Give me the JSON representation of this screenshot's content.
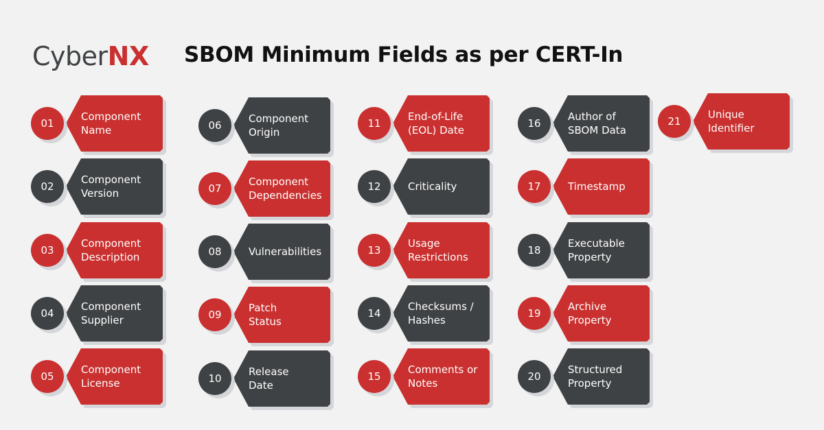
{
  "brand": {
    "logo_part1": "Cyber",
    "logo_part2": "NX"
  },
  "title": "SBOM Minimum Fields as per CERT-In",
  "colors": {
    "red": "#c9302f",
    "dark": "#3f4244",
    "background": "#f2f2f2"
  },
  "items": [
    {
      "num": "01",
      "label": "Component\nName",
      "color": "red"
    },
    {
      "num": "02",
      "label": "Component\nVersion",
      "color": "dark"
    },
    {
      "num": "03",
      "label": "Component\nDescription",
      "color": "red"
    },
    {
      "num": "04",
      "label": "Component\nSupplier",
      "color": "dark"
    },
    {
      "num": "05",
      "label": "Component\nLicense",
      "color": "red"
    },
    {
      "num": "06",
      "label": "Component\nOrigin",
      "color": "dark"
    },
    {
      "num": "07",
      "label": "Component\nDependencies",
      "color": "red"
    },
    {
      "num": "08",
      "label": "Vulnerabilities",
      "color": "dark"
    },
    {
      "num": "09",
      "label": "Patch\nStatus",
      "color": "red"
    },
    {
      "num": "10",
      "label": "Release\nDate",
      "color": "dark"
    },
    {
      "num": "11",
      "label": "End-of-Life\n(EOL) Date",
      "color": "red"
    },
    {
      "num": "12",
      "label": "Criticality",
      "color": "dark"
    },
    {
      "num": "13",
      "label": "Usage\nRestrictions",
      "color": "red"
    },
    {
      "num": "14",
      "label": "Checksums /\nHashes",
      "color": "dark"
    },
    {
      "num": "15",
      "label": "Comments or\nNotes",
      "color": "red"
    },
    {
      "num": "16",
      "label": "Author of\nSBOM Data",
      "color": "dark"
    },
    {
      "num": "17",
      "label": "Timestamp",
      "color": "red"
    },
    {
      "num": "18",
      "label": "Executable\nProperty",
      "color": "dark"
    },
    {
      "num": "19",
      "label": "Archive\nProperty",
      "color": "red"
    },
    {
      "num": "20",
      "label": "Structured\nProperty",
      "color": "dark"
    },
    {
      "num": "21",
      "label": "Unique\nIdentifier",
      "color": "red"
    }
  ]
}
